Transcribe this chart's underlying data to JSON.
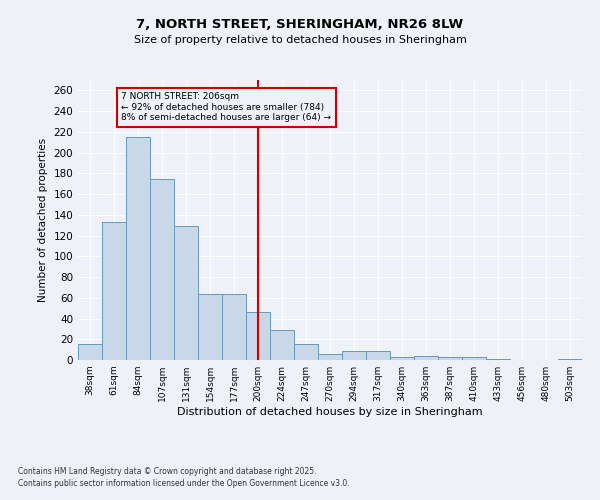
{
  "title_line1": "7, NORTH STREET, SHERINGHAM, NR26 8LW",
  "title_line2": "Size of property relative to detached houses in Sheringham",
  "xlabel": "Distribution of detached houses by size in Sheringham",
  "ylabel": "Number of detached properties",
  "categories": [
    "38sqm",
    "61sqm",
    "84sqm",
    "107sqm",
    "131sqm",
    "154sqm",
    "177sqm",
    "200sqm",
    "224sqm",
    "247sqm",
    "270sqm",
    "294sqm",
    "317sqm",
    "340sqm",
    "363sqm",
    "387sqm",
    "410sqm",
    "433sqm",
    "456sqm",
    "480sqm",
    "503sqm"
  ],
  "values": [
    15,
    133,
    215,
    175,
    129,
    64,
    64,
    46,
    29,
    15,
    6,
    9,
    9,
    3,
    4,
    3,
    3,
    1,
    0,
    0,
    1
  ],
  "bar_color": "#c8d8e8",
  "bar_edge_color": "#6699bb",
  "vline_x_index": 7,
  "vline_color": "#cc0000",
  "annotation_title": "7 NORTH STREET: 206sqm",
  "annotation_line1": "← 92% of detached houses are smaller (784)",
  "annotation_line2": "8% of semi-detached houses are larger (64) →",
  "annotation_box_color": "#cc0000",
  "ylim": [
    0,
    270
  ],
  "yticks": [
    0,
    20,
    40,
    60,
    80,
    100,
    120,
    140,
    160,
    180,
    200,
    220,
    240,
    260
  ],
  "background_color": "#eef2f8",
  "grid_color": "#ffffff",
  "footnote_line1": "Contains HM Land Registry data © Crown copyright and database right 2025.",
  "footnote_line2": "Contains public sector information licensed under the Open Government Licence v3.0."
}
